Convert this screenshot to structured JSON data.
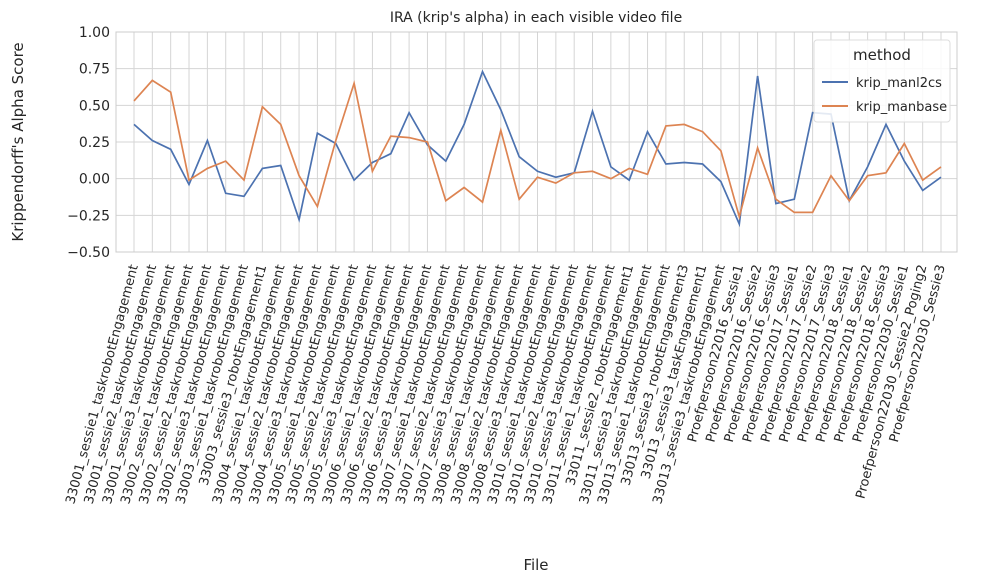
{
  "chart_data": {
    "type": "line",
    "title": "IRA (krip's alpha) in each visible video file",
    "x_label": "File",
    "y_label": "Krippendorff's Alpha Score",
    "categories": [
      "33001_sessie1_taskrobotEngagement",
      "33001_sessie2_taskrobotEngagement",
      "33001_sessie3_taskrobotEngagement",
      "33002_sessie1_taskrobotEngagement",
      "33002_sessie2_taskrobotEngagement",
      "33002_sessie3_taskrobotEngagement",
      "33003_sessie1_taskrobotEngagement",
      "33003_sessie3_robotEngagement1",
      "33004_sessie1_taskrobotEngagement",
      "33004_sessie2_taskrobotEngagement",
      "33004_sessie3_taskrobotEngagement",
      "33005_sessie1_taskrobotEngagement",
      "33005_sessie2_taskrobotEngagement",
      "33005_sessie3_taskrobotEngagement",
      "33006_sessie1_taskrobotEngagement",
      "33006_sessie2_taskrobotEngagement",
      "33006_sessie3_taskrobotEngagement",
      "33007_sessie1_taskrobotEngagement",
      "33007_sessie2_taskrobotEngagement",
      "33007_sessie3_taskrobotEngagement",
      "33008_sessie1_taskrobotEngagement",
      "33008_sessie2_taskrobotEngagement",
      "33008_sessie3_taskrobotEngagement",
      "33010_sessie1_taskrobotEngagement",
      "33010_sessie2_taskrobotEngagement",
      "33010_sessie3_taskrobotEngagement",
      "33011_sessie1_taskrobotEngagement",
      "33011_sessie2_robotEngagement1",
      "33011_sessie3_taskrobotEngagement",
      "33013_sessie1_taskrobotEngagement",
      "33013_sessie3_robotEngagement3",
      "33013_sessie3_taskEngagement1",
      "33013_sessie3_taskrobotEngagement",
      "Proefpersoon22016_Sessie1",
      "Proefpersoon22016_Sessie2",
      "Proefpersoon22016_Sessie3",
      "Proefpersoon22017_Sessie1",
      "Proefpersoon22017_Sessie2",
      "Proefpersoon22017_Sessie3",
      "Proefpersoon22018_Sessie1",
      "Proefpersoon22018_Sessie2",
      "Proefpersoon22018_Sessie3",
      "Proefpersoon22030_Sessie1",
      "Proefpersoon22030_Sessie2_Poging2",
      "Proefpersoon22030_Sessie3"
    ],
    "series": [
      {
        "name": "krip_manl2cs",
        "color": "#4c72b0",
        "values": [
          0.37,
          0.26,
          0.2,
          -0.04,
          0.26,
          -0.1,
          -0.12,
          0.07,
          0.09,
          -0.28,
          0.31,
          0.24,
          -0.01,
          0.11,
          0.17,
          0.45,
          0.23,
          0.12,
          0.37,
          0.73,
          0.47,
          0.15,
          0.05,
          0.01,
          0.04,
          0.46,
          0.08,
          -0.01,
          0.32,
          0.1,
          0.11,
          0.1,
          -0.02,
          -0.31,
          0.7,
          -0.17,
          -0.14,
          0.45,
          0.44,
          -0.15,
          0.08,
          0.37,
          0.12,
          -0.08,
          0.01
        ]
      },
      {
        "name": "krip_manbase",
        "color": "#dd8452",
        "values": [
          0.53,
          0.67,
          0.59,
          -0.01,
          0.07,
          0.12,
          -0.01,
          0.49,
          0.37,
          0.02,
          -0.19,
          0.26,
          0.65,
          0.05,
          0.29,
          0.28,
          0.25,
          -0.15,
          -0.06,
          -0.16,
          0.33,
          -0.14,
          0.01,
          -0.03,
          0.04,
          0.05,
          0.0,
          0.07,
          0.03,
          0.36,
          0.37,
          0.32,
          0.19,
          -0.26,
          0.21,
          -0.14,
          -0.23,
          -0.23,
          0.02,
          -0.15,
          0.02,
          0.04,
          0.24,
          -0.01,
          0.08
        ]
      }
    ],
    "ylim": [
      -0.5,
      1.0
    ],
    "yticks": [
      {
        "value": -0.5,
        "label": "−0.50"
      },
      {
        "value": -0.25,
        "label": "−0.25"
      },
      {
        "value": 0,
        "label": "0.00"
      },
      {
        "value": 0.25,
        "label": "0.25"
      },
      {
        "value": 0.5,
        "label": "0.50"
      },
      {
        "value": 0.75,
        "label": "0.75"
      },
      {
        "value": 1,
        "label": "1.00"
      }
    ],
    "grid": true,
    "legend_title": "method",
    "legend_position": "upper right"
  }
}
